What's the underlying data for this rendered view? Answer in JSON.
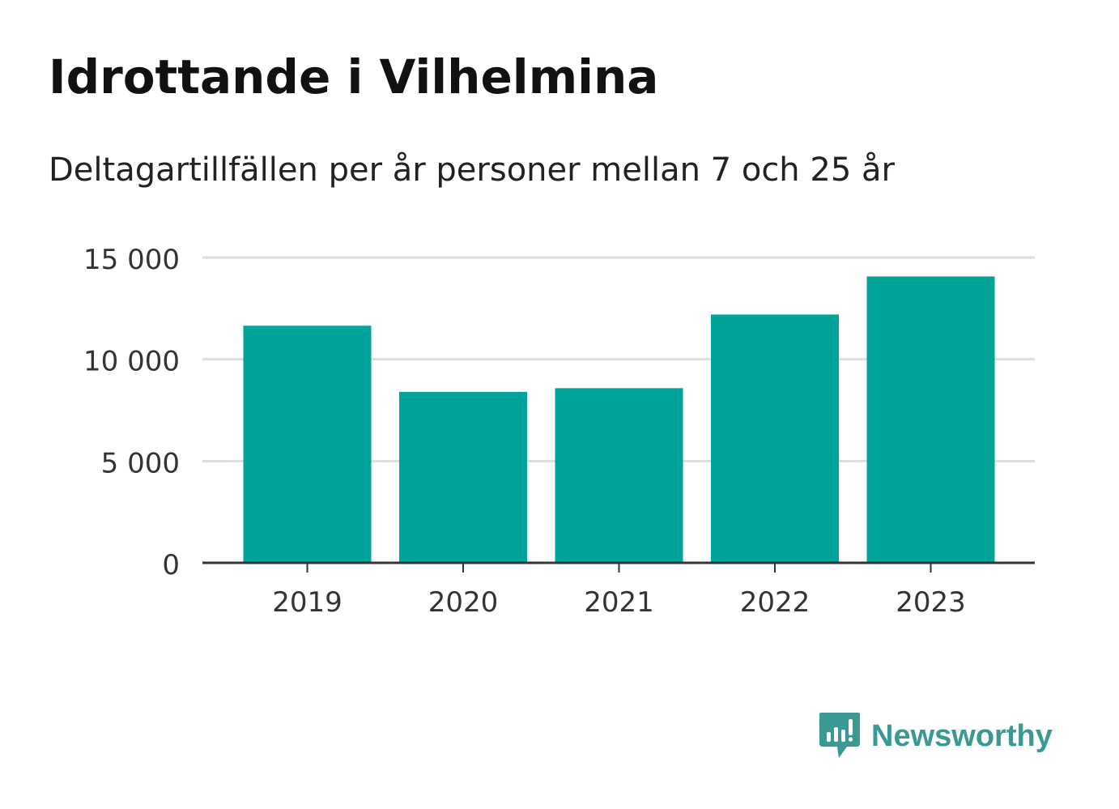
{
  "title": "Idrottande i Vilhelmina",
  "subtitle": "Deltagartillfällen per år personer mellan 7 och 25 år",
  "logo": {
    "text": "Newsworthy",
    "icon": "newsworthy-chart-bubble-icon",
    "color": "#3a9a93"
  },
  "colors": {
    "bar": "#00a49a",
    "grid": "#dddddd",
    "axis": "#333333",
    "tick_text": "#333333"
  },
  "chart_data": {
    "type": "bar",
    "title": "Idrottande i Vilhelmina",
    "subtitle": "Deltagartillfällen per år personer mellan 7 och 25 år",
    "categories": [
      "2019",
      "2020",
      "2021",
      "2022",
      "2023"
    ],
    "values": [
      11650,
      8400,
      8580,
      12200,
      14070
    ],
    "ylim": [
      0,
      15000
    ],
    "yticks": [
      0,
      5000,
      10000,
      15000
    ],
    "ytick_labels": [
      "0",
      "5 000",
      "10 000",
      "15 000"
    ],
    "xlabel": "",
    "ylabel": "",
    "grid": true,
    "legend": "none"
  }
}
